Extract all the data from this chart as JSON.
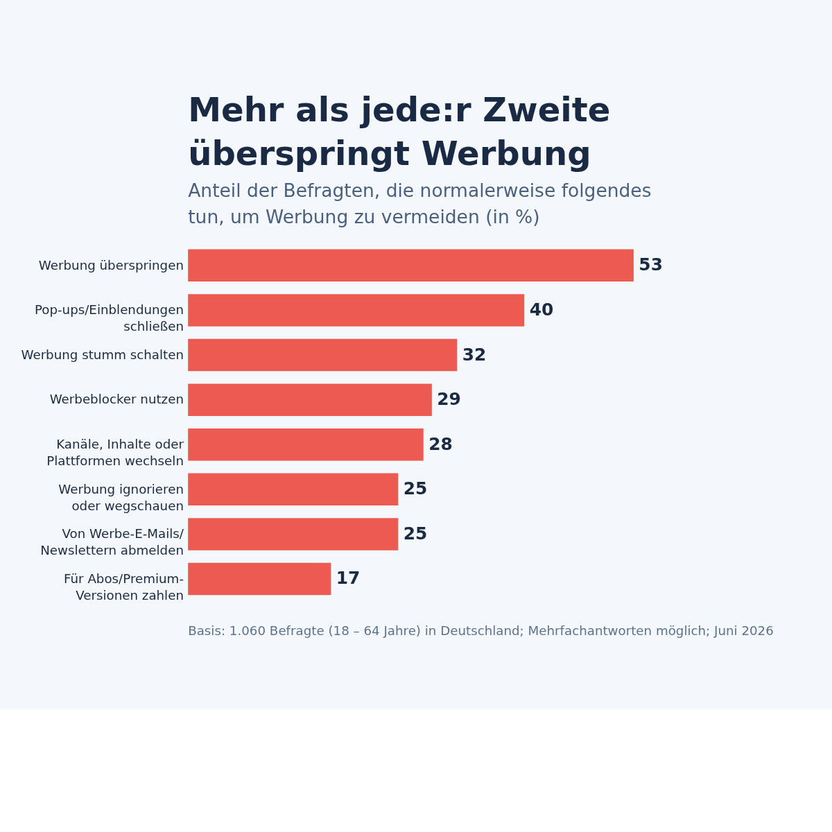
{
  "chart_data": {
    "type": "bar",
    "orientation": "horizontal",
    "title": "Mehr als jede:r Zweite überspringt Werbung",
    "subtitle": "Anteil der Befragten, die normalerweise folgendes tun, um Werbung zu vermeiden (in %)",
    "categories": [
      "Werbung überspringen",
      "Pop-ups/Einblendungen schließen",
      "Werbung stumm schalten",
      "Werbeblocker nutzen",
      "Kanäle, Inhalte oder Plattformen wechseln",
      "Werbung ignorieren oder wegschauen",
      "Von Werbe-E-Mails/Newslettern abmelden",
      "Für Abos/Premium-Versionen zahlen"
    ],
    "values": [
      53,
      40,
      32,
      29,
      28,
      25,
      25,
      17
    ],
    "color": "#ec5a52",
    "data_labels": true,
    "annotations": [
      "Basis: 1.060 Befragte (18 – 64 Jahre) in Deutschland; Mehrfachantworten möglich; Juni 2026"
    ]
  }
}
